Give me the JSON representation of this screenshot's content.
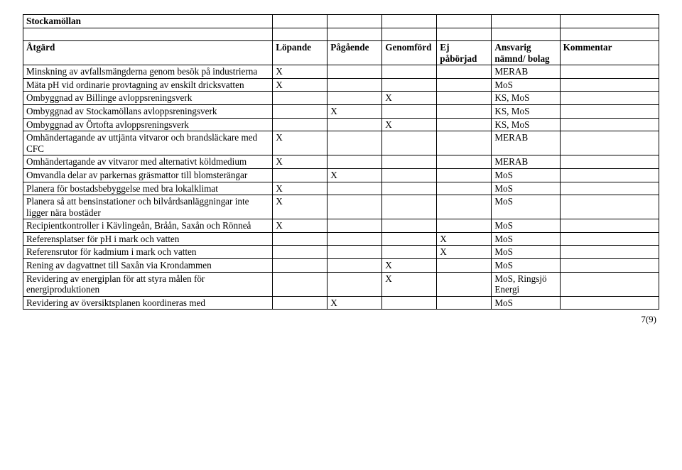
{
  "header": {
    "section_title": "Stockamöllan",
    "cols": [
      "Åtgärd",
      "Löpande",
      "Pågående",
      "Genomförd",
      "Ej påbörjad",
      "Ansvarig nämnd/ bolag",
      "Kommentar"
    ]
  },
  "rows": [
    {
      "desc": "Minskning av avfallsmängderna genom besök på industrierna",
      "lopande": "X",
      "pagaende": "",
      "genomford": "",
      "ej": "",
      "resp": "MERAB",
      "komm": ""
    },
    {
      "desc": "Mäta pH vid ordinarie provtagning av enskilt dricksvatten",
      "lopande": "X",
      "pagaende": "",
      "genomford": "",
      "ej": "",
      "resp": "MoS",
      "komm": ""
    },
    {
      "desc": "Ombyggnad av Billinge avloppsreningsverk",
      "lopande": "",
      "pagaende": "",
      "genomford": "X",
      "ej": "",
      "resp": "KS, MoS",
      "komm": ""
    },
    {
      "desc": "Ombyggnad av Stockamöllans avloppsreningsverk",
      "lopande": "",
      "pagaende": "X",
      "genomford": "",
      "ej": "",
      "resp": "KS, MoS",
      "komm": ""
    },
    {
      "desc": "Ombyggnad av Örtofta avloppsreningsverk",
      "lopande": "",
      "pagaende": "",
      "genomford": "X",
      "ej": "",
      "resp": "KS, MoS",
      "komm": ""
    },
    {
      "desc": "Omhändertagande av uttjänta vitvaror och brandsläckare med CFC",
      "lopande": "X",
      "pagaende": "",
      "genomford": "",
      "ej": "",
      "resp": "MERAB",
      "komm": ""
    },
    {
      "desc": "Omhändertagande av vitvaror med alternativt köldmedium",
      "lopande": "X",
      "pagaende": "",
      "genomford": "",
      "ej": "",
      "resp": "MERAB",
      "komm": ""
    },
    {
      "desc": "Omvandla delar av parkernas gräsmattor till blomsterängar",
      "lopande": "",
      "pagaende": "X",
      "genomford": "",
      "ej": "",
      "resp": "MoS",
      "komm": ""
    },
    {
      "desc": "Planera för bostadsbebyggelse med bra lokalklimat",
      "lopande": "X",
      "pagaende": "",
      "genomford": "",
      "ej": "",
      "resp": "MoS",
      "komm": ""
    },
    {
      "desc": "Planera så att bensinstationer och bilvårdsanläggningar inte ligger nära bostäder",
      "lopande": "X",
      "pagaende": "",
      "genomford": "",
      "ej": "",
      "resp": "MoS",
      "komm": ""
    },
    {
      "desc": "Recipientkontroller i Kävlingeån, Bråån, Saxån och Rönneå",
      "lopande": "X",
      "pagaende": "",
      "genomford": "",
      "ej": "",
      "resp": "MoS",
      "komm": ""
    },
    {
      "desc": "Referensplatser för pH i mark och vatten",
      "lopande": "",
      "pagaende": "",
      "genomford": "",
      "ej": "X",
      "resp": "MoS",
      "komm": ""
    },
    {
      "desc": "Referensrutor för kadmium i mark och vatten",
      "lopande": "",
      "pagaende": "",
      "genomford": "",
      "ej": "X",
      "resp": "MoS",
      "komm": ""
    },
    {
      "desc": "Rening av dagvattnet till Saxån via Krondammen",
      "lopande": "",
      "pagaende": "",
      "genomford": "X",
      "ej": "",
      "resp": "MoS",
      "komm": ""
    },
    {
      "desc": "Revidering av energiplan för att styra målen för energiproduktionen",
      "lopande": "",
      "pagaende": "",
      "genomford": "X",
      "ej": "",
      "resp": "MoS, Ringsjö Energi",
      "komm": ""
    },
    {
      "desc": "Revidering av översiktsplanen koordineras med",
      "lopande": "",
      "pagaende": "X",
      "genomford": "",
      "ej": "",
      "resp": "MoS",
      "komm": ""
    }
  ],
  "footer": {
    "page": "7(9)"
  }
}
